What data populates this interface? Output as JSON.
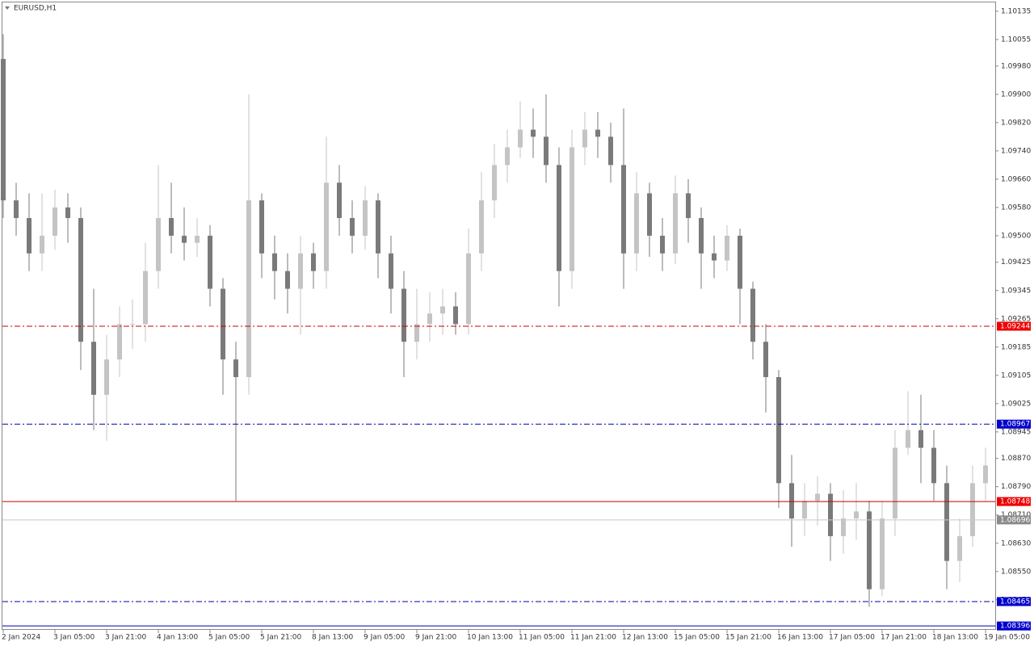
{
  "chart_data": {
    "type": "candlestick",
    "title": "EURUSD,H1",
    "up_color": "#c4c4c4",
    "down_color": "#7a7a7a",
    "ylim": [
      1.08385,
      1.1016
    ],
    "yticks": [
      1.10135,
      1.10055,
      {
        "value": 1.0998,
        "label": "1.09980"
      },
      {
        "value": 1.099,
        "label": "1.09900"
      },
      {
        "value": 1.0982,
        "label": "1.09820"
      },
      {
        "value": 1.0974,
        "label": "1.09740"
      },
      {
        "value": 1.0966,
        "label": "1.09660"
      },
      {
        "value": 1.0958,
        "label": "1.09580"
      },
      {
        "value": 1.095,
        "label": "1.09500"
      },
      1.09425,
      1.09345,
      1.09265,
      1.09185,
      1.09105,
      1.09025,
      1.08945,
      {
        "value": 1.0887,
        "label": "1.08870"
      },
      {
        "value": 1.0879,
        "label": "1.08790"
      },
      {
        "value": 1.0871,
        "label": "1.08710"
      },
      {
        "value": 1.0863,
        "label": "1.08630"
      },
      {
        "value": 1.0855,
        "label": "1.08550"
      },
      {
        "value": 1.0847,
        "label": "1.08470"
      }
    ],
    "categories": [
      "2 Jan 2024",
      null,
      null,
      null,
      "3 Jan 05:00",
      null,
      null,
      null,
      "3 Jan 21:00",
      null,
      null,
      null,
      "4 Jan 13:00",
      null,
      null,
      null,
      "5 Jan 05:00",
      null,
      null,
      null,
      "5 Jan 21:00",
      null,
      null,
      null,
      "8 Jan 13:00",
      null,
      null,
      null,
      "9 Jan 05:00",
      null,
      null,
      null,
      "9 Jan 21:00",
      null,
      null,
      null,
      "10 Jan 13:00",
      null,
      null,
      null,
      "11 Jan 05:00",
      null,
      null,
      null,
      "11 Jan 21:00",
      null,
      null,
      null,
      "12 Jan 13:00",
      null,
      null,
      null,
      "15 Jan 05:00",
      null,
      null,
      null,
      "15 Jan 21:00",
      null,
      null,
      null,
      "16 Jan 13:00",
      null,
      null,
      null,
      "17 Jan 05:00",
      null,
      null,
      null,
      "17 Jan 21:00",
      null,
      null,
      null,
      "18 Jan 13:00",
      null,
      null,
      null,
      "19 Jan 05:00"
    ],
    "open": [
      1.1,
      1.096,
      1.0955,
      1.0945,
      1.095,
      1.0958,
      1.0955,
      1.092,
      1.0905,
      1.0915,
      1.0925,
      1.0925,
      1.094,
      1.0955,
      1.095,
      1.0948,
      1.095,
      1.0935,
      1.0915,
      1.091,
      1.096,
      1.0945,
      1.094,
      1.0935,
      1.0945,
      1.094,
      1.0965,
      1.0955,
      1.095,
      1.096,
      1.0945,
      1.0935,
      1.092,
      1.0925,
      1.0928,
      1.093,
      1.0925,
      1.0945,
      1.096,
      1.097,
      1.0975,
      1.098,
      1.0978,
      1.097,
      1.094,
      1.0975,
      1.098,
      1.0978,
      1.097,
      1.0945,
      1.0962,
      1.095,
      1.0945,
      1.0962,
      1.0955,
      1.0945,
      1.0943,
      1.095,
      1.0935,
      1.092,
      1.091,
      1.088,
      1.087,
      1.0875,
      1.0877,
      1.0865,
      1.087,
      1.0872,
      1.085,
      1.087,
      1.089,
      1.0895,
      1.089,
      1.088,
      1.0858,
      1.0865,
      1.088
    ],
    "high": [
      1.1007,
      1.0965,
      1.0962,
      1.0962,
      1.0963,
      1.0962,
      1.0958,
      1.0935,
      1.0922,
      1.093,
      1.0932,
      1.0948,
      1.097,
      1.0965,
      1.0958,
      1.0955,
      1.0953,
      1.0938,
      1.092,
      1.099,
      1.0962,
      1.095,
      1.0945,
      1.095,
      1.0948,
      1.0978,
      1.097,
      1.096,
      1.0964,
      1.0962,
      1.095,
      1.094,
      1.0935,
      1.0934,
      1.0935,
      1.0934,
      1.0952,
      1.0968,
      1.0976,
      1.098,
      1.0988,
      1.0986,
      1.099,
      1.0975,
      1.098,
      1.0985,
      1.0985,
      1.0982,
      1.0986,
      1.0968,
      1.0965,
      1.0955,
      1.0967,
      1.0966,
      1.0958,
      1.095,
      1.0953,
      1.0952,
      1.0937,
      1.0925,
      1.0912,
      1.0888,
      1.088,
      1.0882,
      1.088,
      1.0878,
      1.088,
      1.0875,
      1.0875,
      1.0895,
      1.0906,
      1.0905,
      1.0895,
      1.0885,
      1.087,
      1.0885,
      1.089
    ],
    "low": [
      1.0955,
      1.095,
      1.094,
      1.094,
      1.0946,
      1.0948,
      1.0912,
      1.0895,
      1.0892,
      1.091,
      1.0918,
      1.092,
      1.0935,
      1.0945,
      1.0943,
      1.0944,
      1.093,
      1.0905,
      1.0875,
      1.0905,
      1.0938,
      1.0932,
      1.0928,
      1.0922,
      1.0935,
      1.0935,
      1.095,
      1.0945,
      1.0946,
      1.0938,
      1.0928,
      1.091,
      1.0915,
      1.092,
      1.0922,
      1.0922,
      1.0922,
      1.094,
      1.0955,
      1.0965,
      1.0972,
      1.0972,
      1.0965,
      1.093,
      1.0935,
      1.097,
      1.0972,
      1.0965,
      1.0935,
      1.094,
      1.0944,
      1.094,
      1.0942,
      1.0948,
      1.0935,
      1.0938,
      1.094,
      1.0925,
      1.0915,
      1.09,
      1.0873,
      1.0862,
      1.0865,
      1.0868,
      1.0858,
      1.086,
      1.0864,
      1.0845,
      1.0848,
      1.0865,
      1.0888,
      1.088,
      1.0875,
      1.085,
      1.0852,
      1.0862,
      1.0875
    ],
    "close": [
      1.096,
      1.0955,
      1.0945,
      1.095,
      1.0958,
      1.0955,
      1.092,
      1.0905,
      1.0915,
      1.0925,
      1.0925,
      1.094,
      1.0955,
      1.095,
      1.0948,
      1.095,
      1.0935,
      1.0915,
      1.091,
      1.096,
      1.0945,
      1.094,
      1.0935,
      1.0945,
      1.094,
      1.0965,
      1.0955,
      1.095,
      1.096,
      1.0945,
      1.0935,
      1.092,
      1.0925,
      1.0928,
      1.093,
      1.0925,
      1.0945,
      1.096,
      1.097,
      1.0975,
      1.098,
      1.0978,
      1.097,
      1.094,
      1.0975,
      1.098,
      1.0978,
      1.097,
      1.0945,
      1.0962,
      1.095,
      1.0945,
      1.0962,
      1.0955,
      1.0945,
      1.0943,
      1.095,
      1.0935,
      1.092,
      1.091,
      1.088,
      1.087,
      1.0875,
      1.0877,
      1.0865,
      1.087,
      1.0872,
      1.085,
      1.087,
      1.089,
      1.0895,
      1.089,
      1.088,
      1.0858,
      1.0865,
      1.088,
      1.0885
    ],
    "levels": [
      {
        "value": 1.09244,
        "color": "#cc0000",
        "style": "dashdot",
        "label_color": "#ee0000"
      },
      {
        "value": 1.08967,
        "color": "#0000aa",
        "style": "dashdot",
        "label_color": "#0000cc"
      },
      {
        "value": 1.08748,
        "color": "#cc0000",
        "style": "solid",
        "label_color": "#ee0000"
      },
      {
        "value": 1.08696,
        "color": "#c8c8c8",
        "style": "solid",
        "label_color": "#8a8a8a"
      },
      {
        "value": 1.08465,
        "color": "#0000aa",
        "style": "dashdot",
        "label_color": "#0000cc"
      },
      {
        "value": 1.08396,
        "color": "#0000aa",
        "style": "solid",
        "label_color": "#0000cc"
      }
    ]
  }
}
